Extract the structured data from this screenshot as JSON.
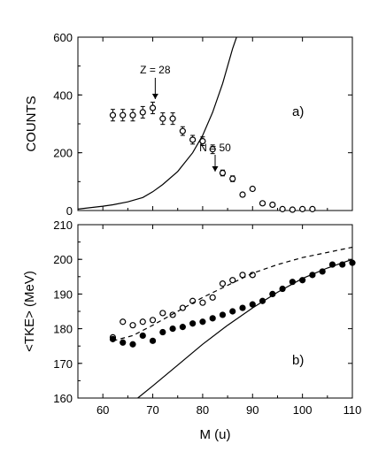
{
  "chart_data": [
    {
      "panel_label": "a)",
      "type": "scatter",
      "ylabel": "COUNTS",
      "xlim": [
        55,
        110
      ],
      "ylim": [
        0,
        600
      ],
      "x_ticks": [
        60,
        70,
        80,
        90,
        100,
        110
      ],
      "y_ticks": [
        0,
        200,
        400,
        600
      ],
      "y_tick_labels": [
        "0",
        "200",
        "400",
        "600"
      ],
      "annotations": [
        {
          "text": "Z = 28",
          "x": 70.5
        },
        {
          "text": "N = 50",
          "x": 82.5
        }
      ],
      "series": [
        {
          "style": "open-circles-errorbars",
          "points": [
            {
              "x": 62,
              "y": 330,
              "err": 20
            },
            {
              "x": 64,
              "y": 330,
              "err": 20
            },
            {
              "x": 66,
              "y": 330,
              "err": 20
            },
            {
              "x": 68,
              "y": 340,
              "err": 20
            },
            {
              "x": 70,
              "y": 355,
              "err": 20
            },
            {
              "x": 72,
              "y": 318,
              "err": 20
            },
            {
              "x": 74,
              "y": 318,
              "err": 20
            },
            {
              "x": 76,
              "y": 275,
              "err": 15
            },
            {
              "x": 78,
              "y": 245,
              "err": 15
            },
            {
              "x": 80,
              "y": 240,
              "err": 15
            },
            {
              "x": 82,
              "y": 212,
              "err": 15
            },
            {
              "x": 84,
              "y": 130,
              "err": 10
            },
            {
              "x": 86,
              "y": 110,
              "err": 10
            },
            {
              "x": 88,
              "y": 55,
              "err": 5
            },
            {
              "x": 90,
              "y": 75,
              "err": 5
            },
            {
              "x": 92,
              "y": 25,
              "err": 5
            },
            {
              "x": 94,
              "y": 20,
              "err": 5
            },
            {
              "x": 96,
              "y": 5,
              "err": 3
            },
            {
              "x": 98,
              "y": 3,
              "err": 3
            },
            {
              "x": 100,
              "y": 5,
              "err": 3
            },
            {
              "x": 102,
              "y": 5,
              "err": 3
            }
          ]
        },
        {
          "style": "solid-line",
          "points": [
            {
              "x": 55,
              "y": 5
            },
            {
              "x": 60,
              "y": 15
            },
            {
              "x": 62,
              "y": 20
            },
            {
              "x": 65,
              "y": 30
            },
            {
              "x": 68,
              "y": 45
            },
            {
              "x": 70,
              "y": 65
            },
            {
              "x": 72,
              "y": 90
            },
            {
              "x": 75,
              "y": 135
            },
            {
              "x": 78,
              "y": 200
            },
            {
              "x": 80,
              "y": 260
            },
            {
              "x": 82,
              "y": 340
            },
            {
              "x": 84,
              "y": 440
            },
            {
              "x": 86,
              "y": 560
            },
            {
              "x": 86.8,
              "y": 600
            }
          ]
        }
      ]
    },
    {
      "panel_label": "b)",
      "type": "scatter",
      "xlabel": "M (u)",
      "ylabel": "<TKE> (MeV)",
      "xlim": [
        55,
        110
      ],
      "ylim": [
        160,
        210
      ],
      "x_ticks": [
        60,
        70,
        80,
        90,
        100,
        110
      ],
      "x_tick_labels": [
        "60",
        "70",
        "80",
        "90",
        "100",
        "110"
      ],
      "y_ticks": [
        160,
        170,
        180,
        190,
        200,
        210
      ],
      "y_tick_labels": [
        "160",
        "170",
        "180",
        "190",
        "200",
        "210"
      ],
      "series": [
        {
          "style": "open-circles",
          "points": [
            {
              "x": 62,
              "y": 177.5
            },
            {
              "x": 64,
              "y": 182
            },
            {
              "x": 66,
              "y": 181
            },
            {
              "x": 68,
              "y": 182
            },
            {
              "x": 70,
              "y": 182.5
            },
            {
              "x": 72,
              "y": 184.5
            },
            {
              "x": 74,
              "y": 184
            },
            {
              "x": 76,
              "y": 186
            },
            {
              "x": 78,
              "y": 188
            },
            {
              "x": 80,
              "y": 187.5
            },
            {
              "x": 82,
              "y": 189
            },
            {
              "x": 84,
              "y": 193
            },
            {
              "x": 86,
              "y": 194
            },
            {
              "x": 88,
              "y": 195.5
            },
            {
              "x": 90,
              "y": 195.5
            }
          ]
        },
        {
          "style": "filled-circles",
          "points": [
            {
              "x": 62,
              "y": 177
            },
            {
              "x": 64,
              "y": 176
            },
            {
              "x": 66,
              "y": 175.5
            },
            {
              "x": 68,
              "y": 178
            },
            {
              "x": 70,
              "y": 176.5
            },
            {
              "x": 72,
              "y": 179
            },
            {
              "x": 74,
              "y": 180
            },
            {
              "x": 76,
              "y": 180.5
            },
            {
              "x": 78,
              "y": 181.5
            },
            {
              "x": 80,
              "y": 182
            },
            {
              "x": 82,
              "y": 183
            },
            {
              "x": 84,
              "y": 184
            },
            {
              "x": 86,
              "y": 185
            },
            {
              "x": 88,
              "y": 186
            },
            {
              "x": 90,
              "y": 187
            },
            {
              "x": 92,
              "y": 188
            },
            {
              "x": 94,
              "y": 190
            },
            {
              "x": 96,
              "y": 191.5
            },
            {
              "x": 98,
              "y": 193.5
            },
            {
              "x": 100,
              "y": 194
            },
            {
              "x": 102,
              "y": 195.5
            },
            {
              "x": 104,
              "y": 196.5
            },
            {
              "x": 106,
              "y": 198.5
            },
            {
              "x": 108,
              "y": 198.5
            },
            {
              "x": 110,
              "y": 199
            }
          ]
        },
        {
          "style": "dashed-line",
          "points": [
            {
              "x": 62,
              "y": 176.5
            },
            {
              "x": 66,
              "y": 178
            },
            {
              "x": 70,
              "y": 181
            },
            {
              "x": 75,
              "y": 185
            },
            {
              "x": 80,
              "y": 189
            },
            {
              "x": 85,
              "y": 192.5
            },
            {
              "x": 90,
              "y": 196
            },
            {
              "x": 95,
              "y": 198.5
            },
            {
              "x": 100,
              "y": 200.5
            },
            {
              "x": 105,
              "y": 202
            },
            {
              "x": 110,
              "y": 203.5
            }
          ]
        },
        {
          "style": "solid-line",
          "points": [
            {
              "x": 67,
              "y": 160
            },
            {
              "x": 70,
              "y": 163.5
            },
            {
              "x": 75,
              "y": 169.5
            },
            {
              "x": 80,
              "y": 175.5
            },
            {
              "x": 85,
              "y": 181
            },
            {
              "x": 90,
              "y": 186
            },
            {
              "x": 95,
              "y": 190.5
            },
            {
              "x": 100,
              "y": 194.5
            },
            {
              "x": 105,
              "y": 197.5
            },
            {
              "x": 110,
              "y": 200
            }
          ]
        }
      ]
    }
  ]
}
